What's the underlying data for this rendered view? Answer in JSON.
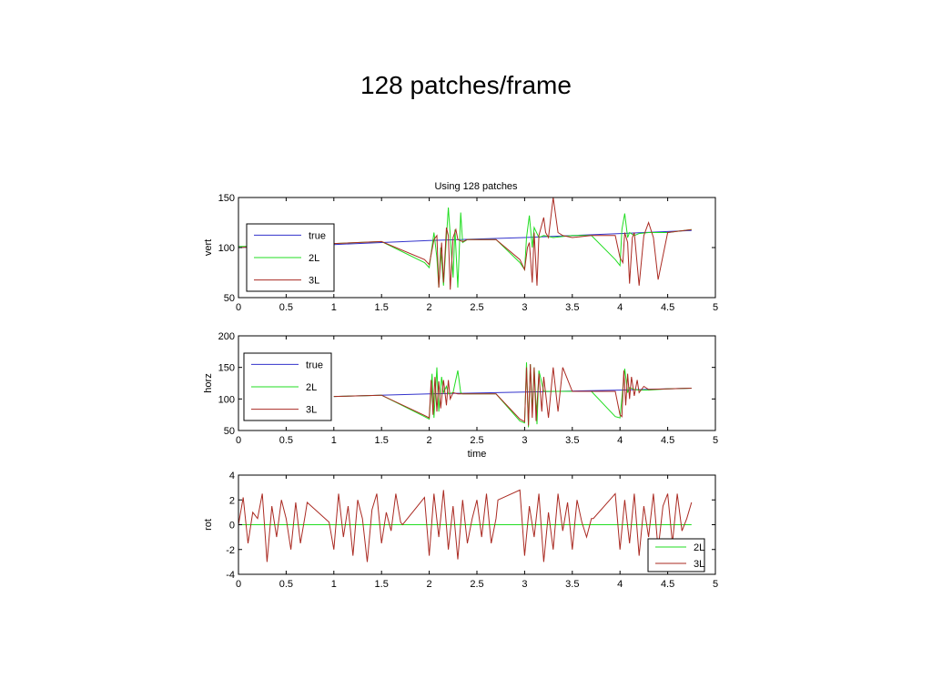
{
  "slide": {
    "title": "128 patches/frame"
  },
  "figure": {
    "title": "Using 128 patches"
  },
  "colors": {
    "true": "#3333cc",
    "2L": "#22dd22",
    "3L": "#aa2a22",
    "axis": "#000000"
  },
  "chart_data": [
    {
      "type": "line",
      "id": "vert",
      "title": "Using 128 patches",
      "xlabel": "",
      "ylabel": "vert",
      "xlim": [
        0,
        5
      ],
      "ylim": [
        50,
        150
      ],
      "xticks": [
        0,
        0.5,
        1,
        1.5,
        2,
        2.5,
        3,
        3.5,
        4,
        4.5,
        5
      ],
      "xtick_labels": [
        "0",
        "0.5",
        "1",
        "1.5",
        "2",
        "2.5",
        "3",
        "3.5",
        "4",
        "4.5",
        "5"
      ],
      "yticks": [
        50,
        100,
        150
      ],
      "ytick_labels": [
        "50",
        "100",
        "150"
      ],
      "legend": {
        "position": "left",
        "entries": [
          "true",
          "2L",
          "3L"
        ]
      },
      "series": [
        {
          "name": "true",
          "x": [
            0,
            1,
            2,
            3,
            4,
            4.75
          ],
          "y": [
            100,
            103,
            107,
            110,
            114,
            117
          ]
        },
        {
          "name": "2L",
          "x": [
            0,
            0.5,
            1,
            1.5,
            1.95,
            2.0,
            2.05,
            2.08,
            2.1,
            2.12,
            2.15,
            2.18,
            2.2,
            2.25,
            2.27,
            2.3,
            2.33,
            2.35,
            2.4,
            2.5,
            2.7,
            2.95,
            3.0,
            3.02,
            3.05,
            3.08,
            3.1,
            3.15,
            3.2,
            3.3,
            3.5,
            3.7,
            3.95,
            4.0,
            4.02,
            4.05,
            4.08,
            4.1,
            4.15,
            4.2,
            4.3,
            4.5,
            4.75
          ],
          "y": [
            101,
            102,
            104,
            106,
            85,
            80,
            115,
            90,
            60,
            100,
            62,
            110,
            140,
            70,
            118,
            60,
            135,
            105,
            108,
            108,
            108,
            85,
            78,
            110,
            132,
            100,
            120,
            110,
            112,
            110,
            112,
            112,
            88,
            82,
            118,
            134,
            110,
            115,
            112,
            114,
            115,
            115,
            118
          ]
        },
        {
          "name": "3L",
          "x": [
            0,
            0.5,
            1,
            1.5,
            1.95,
            2.0,
            2.05,
            2.08,
            2.1,
            2.13,
            2.15,
            2.18,
            2.2,
            2.22,
            2.25,
            2.28,
            2.3,
            2.35,
            2.4,
            2.5,
            2.7,
            2.95,
            3.0,
            3.03,
            3.05,
            3.08,
            3.1,
            3.13,
            3.15,
            3.2,
            3.22,
            3.25,
            3.3,
            3.35,
            3.4,
            3.5,
            3.7,
            3.95,
            4.0,
            4.03,
            4.05,
            4.08,
            4.1,
            4.13,
            4.15,
            4.2,
            4.25,
            4.3,
            4.35,
            4.4,
            4.5,
            4.75
          ],
          "y": [
            100,
            102,
            104,
            106,
            88,
            83,
            108,
            112,
            60,
            105,
            65,
            120,
            112,
            58,
            110,
            118,
            108,
            106,
            108,
            108,
            108,
            88,
            78,
            100,
            105,
            65,
            115,
            62,
            112,
            130,
            115,
            110,
            150,
            115,
            112,
            110,
            112,
            112,
            90,
            85,
            115,
            105,
            64,
            110,
            115,
            62,
            112,
            125,
            110,
            68,
            115,
            118
          ]
        }
      ]
    },
    {
      "type": "line",
      "id": "horz",
      "title": "",
      "xlabel": "time",
      "ylabel": "horz",
      "xlim": [
        0,
        5
      ],
      "ylim": [
        50,
        200
      ],
      "xticks": [
        0,
        0.5,
        1,
        1.5,
        2,
        2.5,
        3,
        3.5,
        4,
        4.5,
        5
      ],
      "xtick_labels": [
        "0",
        "0.5",
        "1",
        "1.5",
        "2",
        "2.5",
        "3",
        "3.5",
        "4",
        "4.5",
        "5"
      ],
      "yticks": [
        50,
        100,
        150,
        200
      ],
      "ytick_labels": [
        "50",
        "100",
        "150",
        "200"
      ],
      "legend": {
        "position": "left",
        "entries": [
          "true",
          "2L",
          "3L"
        ]
      },
      "series": [
        {
          "name": "true",
          "x": [
            1,
            2,
            3,
            4,
            4.75
          ],
          "y": [
            104,
            108,
            111,
            114,
            117
          ]
        },
        {
          "name": "2L",
          "x": [
            1,
            1.5,
            1.95,
            2.0,
            2.03,
            2.05,
            2.08,
            2.1,
            2.13,
            2.15,
            2.18,
            2.2,
            2.25,
            2.3,
            2.33,
            2.35,
            2.4,
            2.5,
            2.7,
            2.95,
            3.0,
            3.02,
            3.04,
            3.06,
            3.08,
            3.1,
            3.13,
            3.15,
            3.2,
            3.3,
            3.5,
            3.7,
            3.95,
            4.0,
            4.05,
            4.08,
            4.1,
            4.15,
            4.2,
            4.3,
            4.5,
            4.75
          ],
          "y": [
            104,
            106,
            72,
            68,
            140,
            70,
            150,
            80,
            135,
            110,
            120,
            108,
            110,
            145,
            110,
            108,
            108,
            108,
            108,
            65,
            62,
            158,
            55,
            155,
            80,
            150,
            60,
            145,
            112,
            112,
            112,
            112,
            72,
            70,
            148,
            110,
            118,
            115,
            114,
            114,
            116,
            117
          ]
        },
        {
          "name": "3L",
          "x": [
            1,
            1.5,
            1.95,
            2.0,
            2.02,
            2.04,
            2.06,
            2.08,
            2.1,
            2.12,
            2.15,
            2.18,
            2.2,
            2.22,
            2.25,
            2.3,
            2.4,
            2.5,
            2.7,
            2.95,
            3.0,
            3.02,
            3.04,
            3.06,
            3.08,
            3.1,
            3.12,
            3.15,
            3.18,
            3.2,
            3.25,
            3.3,
            3.35,
            3.4,
            3.5,
            3.7,
            3.95,
            4.0,
            4.02,
            4.04,
            4.06,
            4.08,
            4.1,
            4.12,
            4.15,
            4.18,
            4.2,
            4.25,
            4.3,
            4.5,
            4.75
          ],
          "y": [
            104,
            106,
            74,
            70,
            130,
            75,
            135,
            80,
            128,
            85,
            130,
            90,
            130,
            100,
            110,
            108,
            108,
            108,
            108,
            68,
            64,
            150,
            58,
            155,
            70,
            150,
            65,
            140,
            80,
            135,
            70,
            150,
            80,
            150,
            112,
            112,
            112,
            75,
            72,
            145,
            90,
            140,
            100,
            135,
            105,
            130,
            110,
            120,
            115,
            116,
            117
          ]
        }
      ]
    },
    {
      "type": "line",
      "id": "rot",
      "title": "",
      "xlabel": "",
      "ylabel": "rot",
      "xlim": [
        0,
        5
      ],
      "ylim": [
        -4,
        4
      ],
      "xticks": [
        0,
        0.5,
        1,
        1.5,
        2,
        2.5,
        3,
        3.5,
        4,
        4.5,
        5
      ],
      "xtick_labels": [
        "0",
        "0.5",
        "1",
        "1.5",
        "2",
        "2.5",
        "3",
        "3.5",
        "4",
        "4.5",
        "5"
      ],
      "yticks": [
        -4,
        -2,
        0,
        2,
        4
      ],
      "ytick_labels": [
        "-4",
        "-2",
        "0",
        "2",
        "4"
      ],
      "legend": {
        "position": "bottom-right",
        "entries": [
          "2L",
          "3L"
        ]
      },
      "series": [
        {
          "name": "2L",
          "x": [
            0,
            4.75
          ],
          "y": [
            0,
            0
          ]
        },
        {
          "name": "3L",
          "x": [
            0,
            0.05,
            0.1,
            0.15,
            0.2,
            0.25,
            0.3,
            0.35,
            0.4,
            0.45,
            0.5,
            0.55,
            0.6,
            0.65,
            0.7,
            0.72,
            0.95,
            1.0,
            1.05,
            1.1,
            1.15,
            1.2,
            1.25,
            1.3,
            1.35,
            1.4,
            1.45,
            1.5,
            1.55,
            1.6,
            1.65,
            1.7,
            1.72,
            1.95,
            2.0,
            2.05,
            2.1,
            2.15,
            2.2,
            2.25,
            2.3,
            2.35,
            2.4,
            2.45,
            2.5,
            2.55,
            2.6,
            2.65,
            2.7,
            2.72,
            2.95,
            3.0,
            3.05,
            3.1,
            3.15,
            3.2,
            3.25,
            3.3,
            3.35,
            3.4,
            3.45,
            3.5,
            3.55,
            3.6,
            3.65,
            3.7,
            3.72,
            3.95,
            4.0,
            4.05,
            4.1,
            4.15,
            4.2,
            4.25,
            4.3,
            4.35,
            4.4,
            4.45,
            4.5,
            4.55,
            4.6,
            4.65,
            4.7,
            4.75
          ],
          "y": [
            0,
            2.2,
            -1.5,
            1.0,
            0.5,
            2.5,
            -3.0,
            1.5,
            -1.0,
            2.0,
            0.5,
            -2.0,
            1.8,
            -1.5,
            0.8,
            1.8,
            0.2,
            -2.0,
            2.5,
            -1.0,
            1.5,
            -2.5,
            2.0,
            0.5,
            -3.0,
            1.2,
            2.5,
            -1.5,
            1.0,
            -0.5,
            2.5,
            0.2,
            0,
            2.2,
            -2.5,
            2.5,
            -1.0,
            2.8,
            -2.0,
            1.5,
            -2.8,
            2.0,
            -1.5,
            0.5,
            2.0,
            -1.0,
            2.5,
            -1.5,
            0.5,
            2.0,
            2.8,
            -2.5,
            1.5,
            -1.0,
            2.5,
            -3.0,
            1.0,
            -2.0,
            2.5,
            -0.5,
            1.8,
            -2.0,
            2.0,
            0.2,
            -1.0,
            0.5,
            0.5,
            2.5,
            -2.0,
            2.0,
            -1.5,
            2.5,
            -2.5,
            1.5,
            -1.0,
            2.5,
            -2.0,
            1.5,
            2.5,
            -1.5,
            2.5,
            -0.5,
            0.5,
            1.8
          ]
        }
      ]
    }
  ]
}
